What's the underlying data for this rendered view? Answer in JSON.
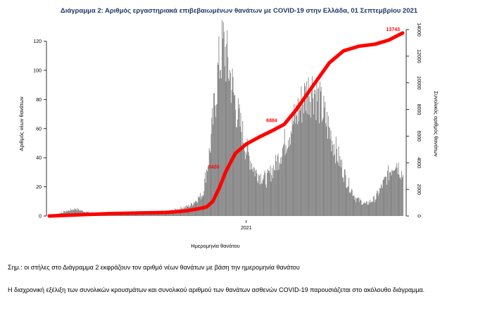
{
  "chart_data": {
    "type": "bar",
    "title": "Διάγραμμα 2: Αριθμός εργαστηριακά επιβεβαιωμένων θανάτων με COVID-19 στην Ελλάδα, 01 Σεπτεμβρίου 2021",
    "xlabel": "Ημερομηνία θανάτου",
    "ylabel": "Αριθμός νέων θανάτων",
    "y2label": "Συνολικός αριθμός θανάτων",
    "x_tick_label": "2021",
    "ylim": [
      0,
      128
    ],
    "y2lim": [
      0,
      14000
    ],
    "yticks": [
      0,
      20,
      40,
      60,
      80,
      100,
      120
    ],
    "y2ticks": [
      0,
      2000,
      4000,
      6000,
      8000,
      10000,
      12000,
      14000
    ],
    "x_start": "2020-03-01",
    "x_end": "2021-09-01",
    "x_tick": "2021-01-01",
    "bar_color": "#808080",
    "line_color": "#ff0000",
    "daily_deaths_profile": [
      {
        "date": "2020-03-01",
        "value": 0
      },
      {
        "date": "2020-03-25",
        "value": 3
      },
      {
        "date": "2020-04-10",
        "value": 5
      },
      {
        "date": "2020-04-25",
        "value": 3
      },
      {
        "date": "2020-05-20",
        "value": 1
      },
      {
        "date": "2020-07-01",
        "value": 1
      },
      {
        "date": "2020-08-10",
        "value": 2
      },
      {
        "date": "2020-09-10",
        "value": 4
      },
      {
        "date": "2020-10-05",
        "value": 7
      },
      {
        "date": "2020-10-25",
        "value": 15
      },
      {
        "date": "2020-11-05",
        "value": 45
      },
      {
        "date": "2020-11-18",
        "value": 100
      },
      {
        "date": "2020-11-26",
        "value": 118
      },
      {
        "date": "2020-12-05",
        "value": 100
      },
      {
        "date": "2020-12-18",
        "value": 70
      },
      {
        "date": "2021-01-01",
        "value": 45
      },
      {
        "date": "2021-01-15",
        "value": 30
      },
      {
        "date": "2021-02-01",
        "value": 25
      },
      {
        "date": "2021-02-15",
        "value": 35
      },
      {
        "date": "2021-03-01",
        "value": 50
      },
      {
        "date": "2021-03-20",
        "value": 70
      },
      {
        "date": "2021-04-05",
        "value": 85
      },
      {
        "date": "2021-04-15",
        "value": 88
      },
      {
        "date": "2021-05-01",
        "value": 70
      },
      {
        "date": "2021-05-20",
        "value": 45
      },
      {
        "date": "2021-06-05",
        "value": 25
      },
      {
        "date": "2021-06-20",
        "value": 12
      },
      {
        "date": "2021-07-05",
        "value": 8
      },
      {
        "date": "2021-07-20",
        "value": 12
      },
      {
        "date": "2021-08-05",
        "value": 25
      },
      {
        "date": "2021-08-20",
        "value": 38
      },
      {
        "date": "2021-09-01",
        "value": 28
      }
    ],
    "cumulative_series": [
      {
        "date": "2020-03-01",
        "value": 0
      },
      {
        "date": "2020-06-01",
        "value": 180
      },
      {
        "date": "2020-09-01",
        "value": 270
      },
      {
        "date": "2020-10-01",
        "value": 390
      },
      {
        "date": "2020-10-25",
        "value": 600
      },
      {
        "date": "2020-11-01",
        "value": 700
      },
      {
        "date": "2020-11-10",
        "value": 1100
      },
      {
        "date": "2020-11-20",
        "value": 2100
      },
      {
        "date": "2020-12-01",
        "value": 3420
      },
      {
        "date": "2020-12-15",
        "value": 4700
      },
      {
        "date": "2021-01-01",
        "value": 5400
      },
      {
        "date": "2021-01-20",
        "value": 5900
      },
      {
        "date": "2021-02-10",
        "value": 6400
      },
      {
        "date": "2021-03-01",
        "value": 6884
      },
      {
        "date": "2021-03-20",
        "value": 8000
      },
      {
        "date": "2021-04-15",
        "value": 9800
      },
      {
        "date": "2021-05-10",
        "value": 11500
      },
      {
        "date": "2021-06-01",
        "value": 12400
      },
      {
        "date": "2021-06-25",
        "value": 12750
      },
      {
        "date": "2021-07-20",
        "value": 12900
      },
      {
        "date": "2021-08-10",
        "value": 13200
      },
      {
        "date": "2021-09-01",
        "value": 13743
      }
    ],
    "annotations": [
      {
        "label": "3420",
        "date": "2020-12-01",
        "value": 3420
      },
      {
        "label": "6884",
        "date": "2021-03-01",
        "value": 6884
      },
      {
        "label": "13743",
        "date": "2021-09-01",
        "value": 13743
      }
    ]
  },
  "notes": {
    "note1": "Σημ.: οι στήλες στο Διάγραμμα 2 εκφράζουν τον αριθμό νέων θανάτων με βάση την ημερομηνία θανάτου",
    "note2": "Η διαχρονική εξέλιξη των συνολικών κρουσμάτων και συνολικού αριθμού των θανάτων ασθενών COVID-19 παρουσιάζεται στο ακόλουθο διάγραμμα."
  }
}
